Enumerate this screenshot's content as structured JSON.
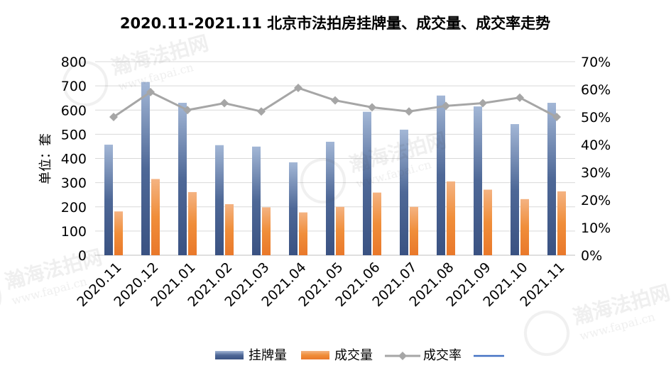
{
  "chart_data": {
    "type": "bar+line",
    "title": "2020.11-2021.11 北京市法拍房挂牌量、成交量、成交率走势",
    "ylabel": "单位：套",
    "categories": [
      "2020.11",
      "2020.12",
      "2021.01",
      "2021.02",
      "2021.03",
      "2021.04",
      "2021.05",
      "2021.06",
      "2021.07",
      "2021.08",
      "2021.09",
      "2021.10",
      "2021.11"
    ],
    "y_left": {
      "min": 0,
      "max": 800,
      "ticks": [
        "0",
        "100",
        "200",
        "300",
        "400",
        "500",
        "600",
        "700",
        "800"
      ],
      "tick_values": [
        0,
        100,
        200,
        300,
        400,
        500,
        600,
        700,
        800
      ]
    },
    "y_right": {
      "min": 0,
      "max": 0.7,
      "ticks": [
        "0%",
        "10%",
        "20%",
        "30%",
        "40%",
        "50%",
        "60%",
        "70%"
      ],
      "tick_values": [
        0,
        0.1,
        0.2,
        0.3,
        0.4,
        0.5,
        0.6,
        0.7
      ]
    },
    "series": [
      {
        "name": "挂牌量",
        "type": "bar",
        "axis": "left",
        "color": "#4a6595",
        "values": [
          457,
          716,
          630,
          455,
          449,
          384,
          469,
          593,
          519,
          660,
          615,
          542,
          630
        ]
      },
      {
        "name": "成交量",
        "type": "bar",
        "axis": "left",
        "color": "#f28a2b",
        "values": [
          181,
          315,
          261,
          211,
          198,
          177,
          200,
          259,
          200,
          305,
          271,
          232,
          264
        ]
      },
      {
        "name": "成交率",
        "type": "line",
        "axis": "right",
        "color": "#a6a6a6",
        "values": [
          0.5,
          0.59,
          0.525,
          0.55,
          0.52,
          0.605,
          0.56,
          0.535,
          0.52,
          0.54,
          0.55,
          0.57,
          0.5
        ]
      }
    ],
    "legend": {
      "position": "bottom",
      "extra_line_color": "#4472c4"
    },
    "grid": true,
    "watermark": {
      "text_cn": "瀚海法拍网",
      "text_en": "www.fapai.cn"
    }
  }
}
